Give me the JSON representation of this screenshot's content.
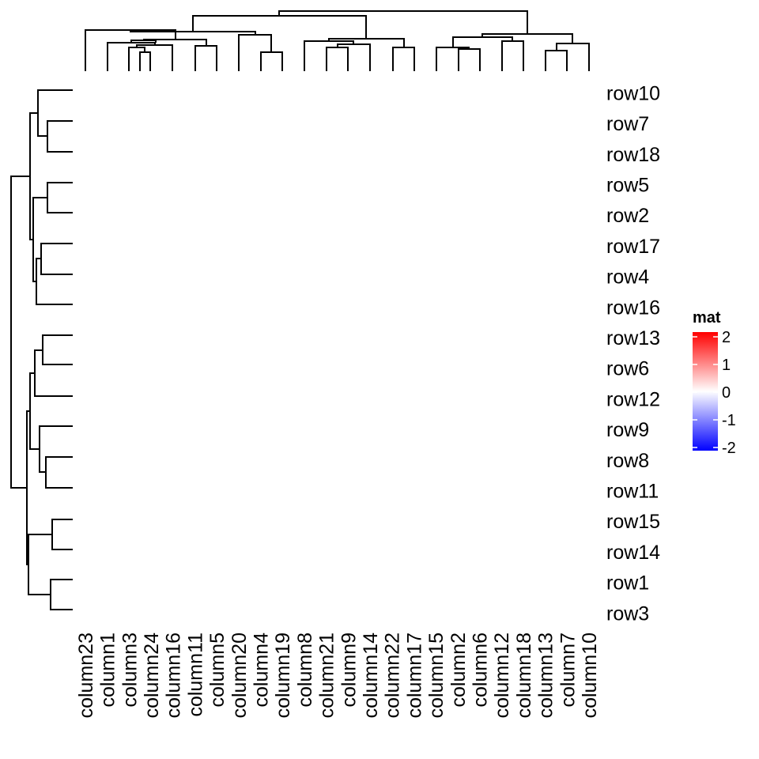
{
  "chart_data": {
    "type": "heatmap",
    "rows": [
      "row10",
      "row7",
      "row18",
      "row5",
      "row2",
      "row17",
      "row4",
      "row16",
      "row13",
      "row6",
      "row12",
      "row9",
      "row8",
      "row11",
      "row15",
      "row14",
      "row1",
      "row3"
    ],
    "columns": [
      "column23",
      "column1",
      "column3",
      "column24",
      "column16",
      "column11",
      "column5",
      "column20",
      "column4",
      "column19",
      "column8",
      "column21",
      "column9",
      "column14",
      "column22",
      "column17",
      "column15",
      "column2",
      "column6",
      "column12",
      "column18",
      "column13",
      "column7",
      "column10"
    ],
    "legend": {
      "title": "mat",
      "ticks": [
        "2",
        "1",
        "0",
        "-1",
        "-2"
      ],
      "range": [
        -2,
        2
      ],
      "colors": {
        "low": "#0000ff",
        "mid": "#ffffff",
        "high": "#ff0000"
      }
    },
    "row_dendrogram": true,
    "column_dendrogram": true
  }
}
